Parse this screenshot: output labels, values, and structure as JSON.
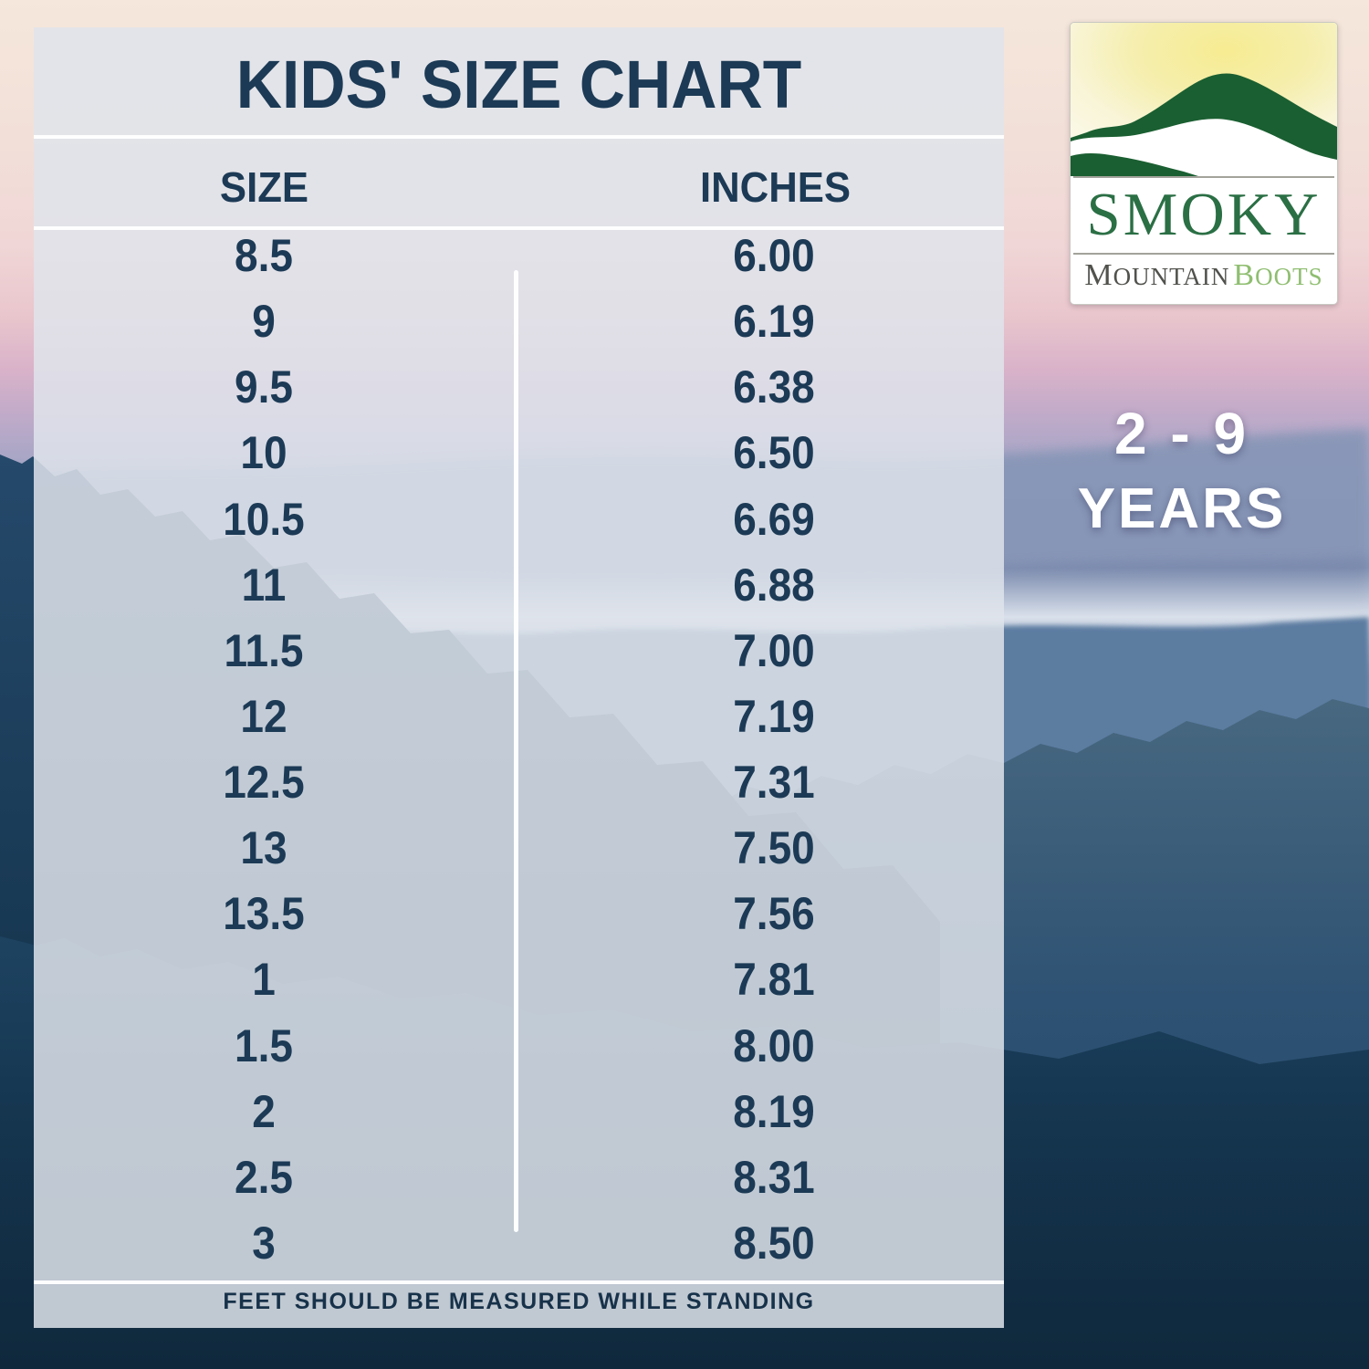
{
  "chart_data": {
    "type": "table",
    "title": "KIDS' SIZE CHART",
    "columns": [
      "SIZE",
      "INCHES"
    ],
    "rows": [
      [
        "8.5",
        "6.00"
      ],
      [
        "9",
        "6.19"
      ],
      [
        "9.5",
        "6.38"
      ],
      [
        "10",
        "6.50"
      ],
      [
        "10.5",
        "6.69"
      ],
      [
        "11",
        "6.88"
      ],
      [
        "11.5",
        "7.00"
      ],
      [
        "12",
        "7.19"
      ],
      [
        "12.5",
        "7.31"
      ],
      [
        "13",
        "7.50"
      ],
      [
        "13.5",
        "7.56"
      ],
      [
        "1",
        "7.81"
      ],
      [
        "1.5",
        "8.00"
      ],
      [
        "2",
        "8.19"
      ],
      [
        "2.5",
        "8.31"
      ],
      [
        "3",
        "8.50"
      ]
    ],
    "footnote": "FEET SHOULD BE MEASURED WHILE STANDING"
  },
  "logo": {
    "name_top": "SMOKY",
    "name_bottom_1": "MOUNTAIN",
    "name_bottom_2": "BOOTS"
  },
  "age_range": {
    "value": "2 - 9",
    "unit": "YEARS"
  },
  "colors": {
    "navy_text": "#1c3a55",
    "panel_overlay": "rgba(223,228,235,0.85)",
    "logo_mountain_green": "#1a5f31",
    "logo_smoky_green": "#2b6f45",
    "logo_boots_green": "#8fbe70",
    "logo_gray_text": "#51514d",
    "age_text": "#ffffff"
  }
}
